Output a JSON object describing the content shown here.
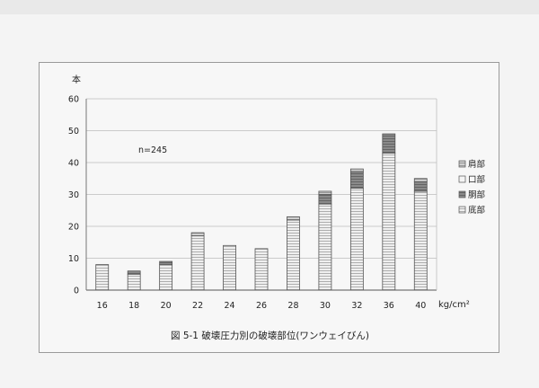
{
  "chart_data": {
    "type": "bar",
    "stacked": true,
    "title": "",
    "caption": "図 5-1  破壊圧力別の破壊部位(ワンウェイびん)",
    "annotation": "n=245",
    "ylabel": "本",
    "xlabel": "kg/cm²",
    "categories": [
      "16",
      "18",
      "20",
      "22",
      "24",
      "26",
      "28",
      "30",
      "32",
      "36",
      "40"
    ],
    "ylim": [
      0,
      60
    ],
    "yticks": [
      "0",
      "10",
      "20",
      "30",
      "40",
      "50",
      "60"
    ],
    "grid": true,
    "legend_position": "right",
    "series": [
      {
        "name": "底部",
        "color": "#d8d8d8",
        "values": [
          8,
          5,
          8,
          17,
          14,
          13,
          22,
          27,
          32,
          43,
          31
        ]
      },
      {
        "name": "胴部",
        "color": "#7e7e7e",
        "values": [
          0,
          1,
          1,
          0,
          0,
          0,
          0,
          3,
          5,
          6,
          3
        ]
      },
      {
        "name": "口部",
        "color": "#f4f4f4",
        "values": [
          0,
          0,
          0,
          0,
          0,
          0,
          0,
          0,
          0,
          0,
          0
        ]
      },
      {
        "name": "肩部",
        "color": "#b8b8b8",
        "values": [
          0,
          0,
          0,
          1,
          0,
          0,
          1,
          1,
          1,
          0,
          1
        ]
      }
    ],
    "legend_order": [
      "肩部",
      "口部",
      "胴部",
      "底部"
    ]
  }
}
